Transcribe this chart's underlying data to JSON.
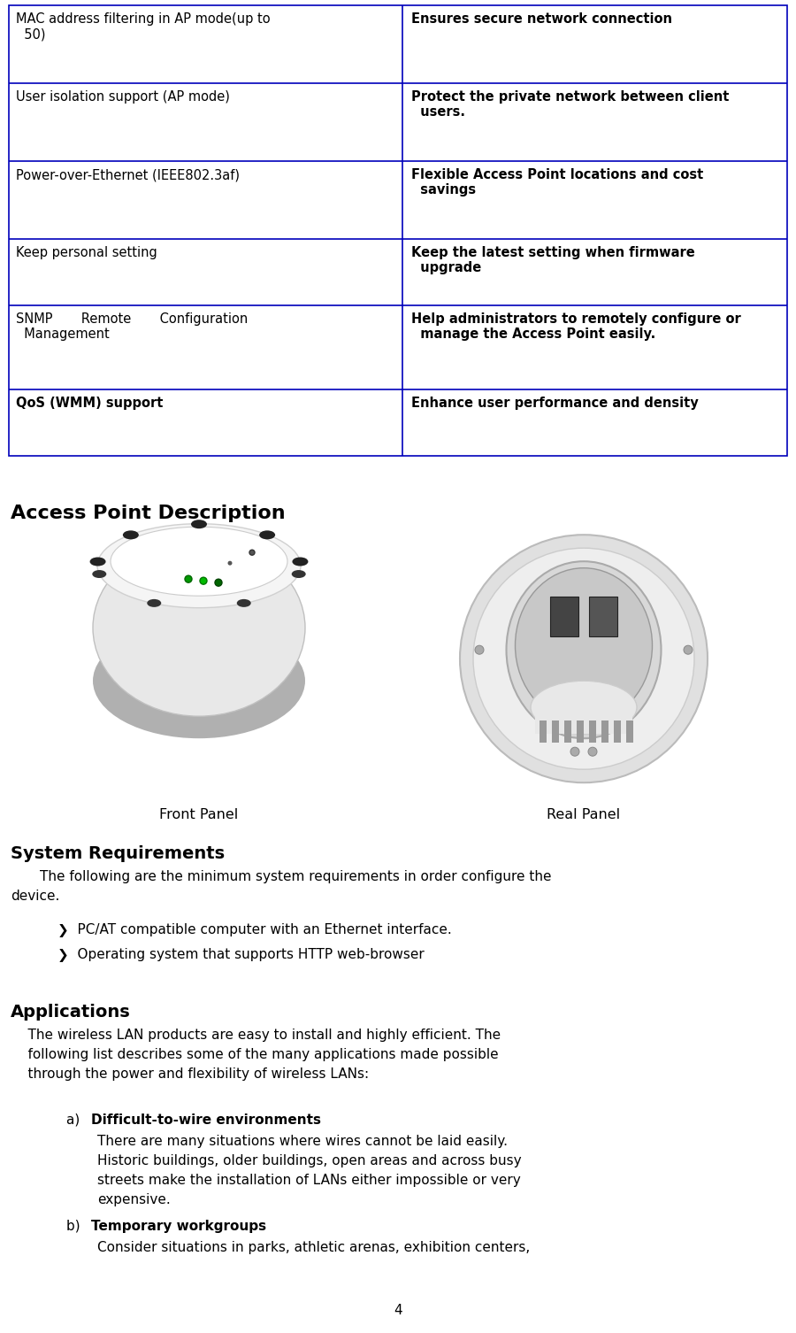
{
  "bg_color": "#ffffff",
  "table_border_color": "#0000bb",
  "table_rows": [
    {
      "left": "MAC address filtering in AP mode(up to\n  50)",
      "right": "Ensures secure network connection",
      "left_bold": false,
      "right_bold": true
    },
    {
      "left": "User isolation support (AP mode)",
      "right": "Protect the private network between client\n  users.",
      "left_bold": false,
      "right_bold": true
    },
    {
      "left": "Power-over-Ethernet (IEEE802.3af)",
      "right": "Flexible Access Point locations and cost\n  savings",
      "left_bold": false,
      "right_bold": true
    },
    {
      "left": "Keep personal setting",
      "right": "Keep the latest setting when firmware\n  upgrade",
      "left_bold": false,
      "right_bold": true
    },
    {
      "left": "SNMP       Remote       Configuration\n  Management",
      "right": "Help administrators to remotely configure or\n  manage the Access Point easily.",
      "left_bold": false,
      "right_bold": true
    },
    {
      "left": "QoS (WMM) support",
      "right": "Enhance user performance and density",
      "left_bold": true,
      "right_bold": true
    }
  ],
  "section_access_point": "Access Point Description",
  "front_panel_label": "Front Panel",
  "rear_panel_label": "Real Panel",
  "section_system": "System Requirements",
  "system_bullets": [
    "PC/AT compatible computer with an Ethernet interface.",
    "Operating system that supports HTTP web-browser"
  ],
  "section_applications": "Applications",
  "app_items": [
    {
      "label": "a)",
      "title": "Difficult-to-wire environments",
      "body_lines": [
        "There are many situations where wires cannot be laid easily.",
        "Historic buildings, older buildings, open areas and across busy",
        "streets make the installation of LANs either impossible or very",
        "expensive."
      ]
    },
    {
      "label": "b)",
      "title": "Temporary workgroups",
      "body_lines": [
        "Consider situations in parks, athletic arenas, exhibition centers,"
      ]
    }
  ],
  "page_number": "4"
}
